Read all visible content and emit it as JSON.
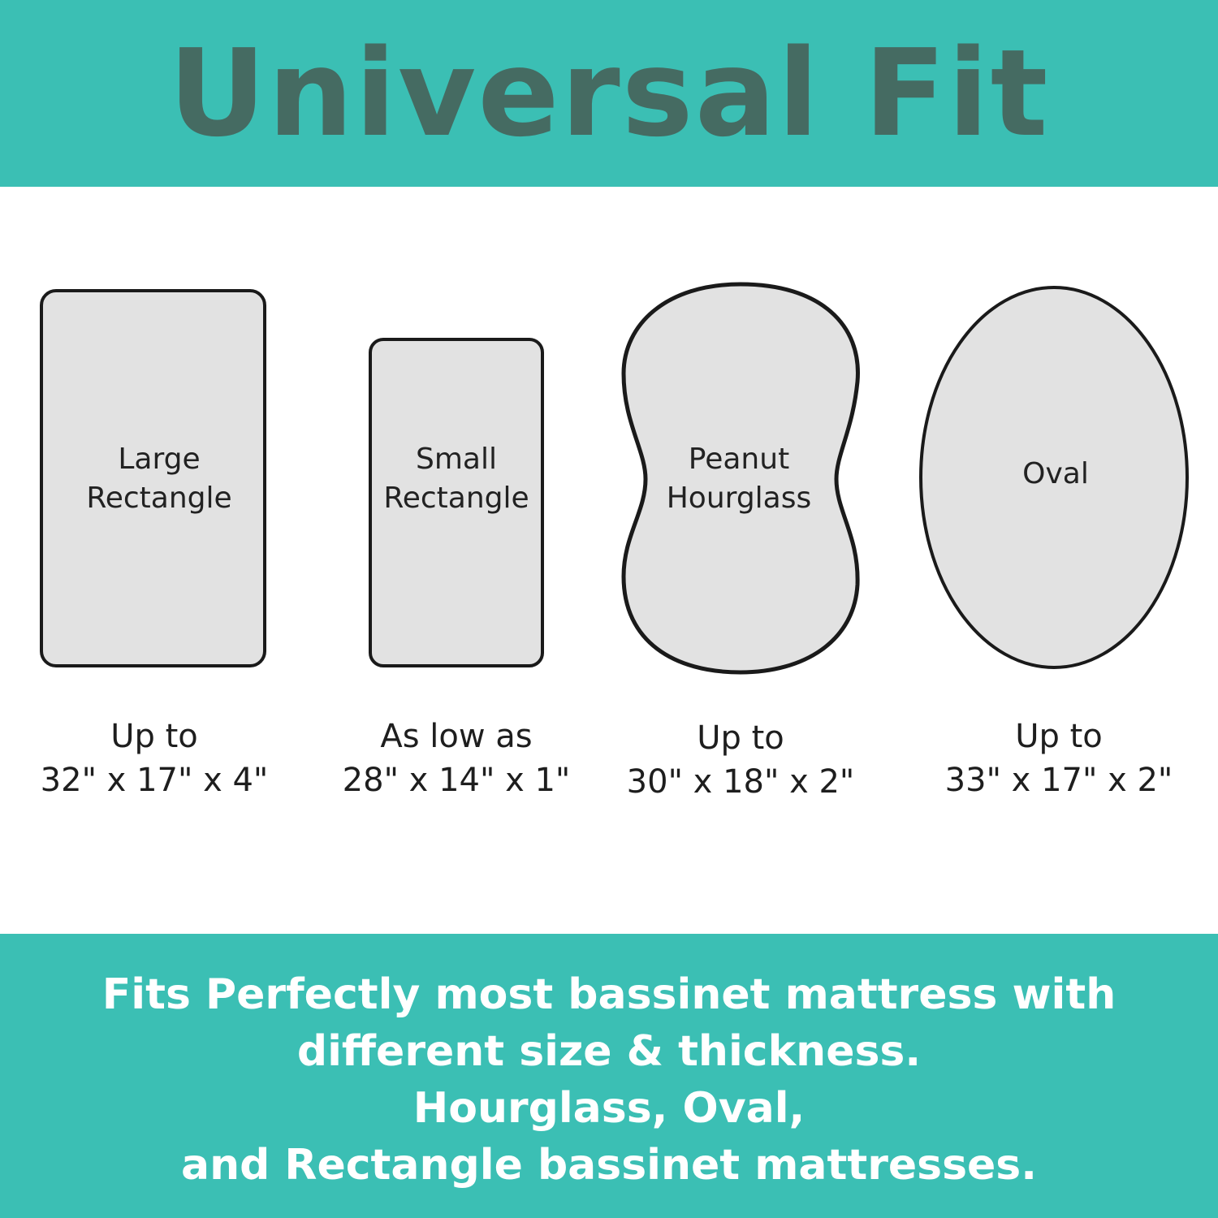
{
  "title": "Universal Fit",
  "colors": {
    "band": "#3BBFB4",
    "title": "#456B62",
    "shape_fill": "#E2E2E2",
    "shape_stroke": "#1a1a1a"
  },
  "shapes": [
    {
      "name": "Large Rectangle",
      "line1": "Large",
      "line2": "Rectangle",
      "prefix": "Up to",
      "dims": "32\" x 17\" x 4\""
    },
    {
      "name": "Small Rectangle",
      "line1": "Small",
      "line2": "Rectangle",
      "prefix": "As low as",
      "dims": "28\" x 14\" x 1\""
    },
    {
      "name": "Peanut Hourglass",
      "line1": "Peanut",
      "line2": "Hourglass",
      "prefix": "Up to",
      "dims": "30\" x 18\" x 2\""
    },
    {
      "name": "Oval",
      "line1": "Oval",
      "line2": "",
      "prefix": "Up to",
      "dims": "33\" x 17\" x 2\""
    }
  ],
  "footer": {
    "lines": [
      "Fits Perfectly most bassinet mattress with",
      "different size & thickness.",
      "Hourglass, Oval,",
      "and Rectangle bassinet mattresses."
    ]
  }
}
